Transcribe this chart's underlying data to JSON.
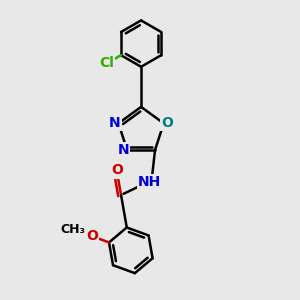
{
  "background_color": "#e8e8e8",
  "bond_color": "#000000",
  "bond_width": 1.8,
  "atom_colors": {
    "N": "#0000dd",
    "O_oxadiazole": "#008080",
    "O_carbonyl": "#cc0000",
    "O_methoxy": "#cc0000",
    "Cl": "#33aa00",
    "C": "#000000"
  },
  "font_size": 10,
  "fig_size": [
    3.0,
    3.0
  ],
  "dpi": 100,
  "xlim": [
    0,
    10
  ],
  "ylim": [
    0,
    10
  ]
}
